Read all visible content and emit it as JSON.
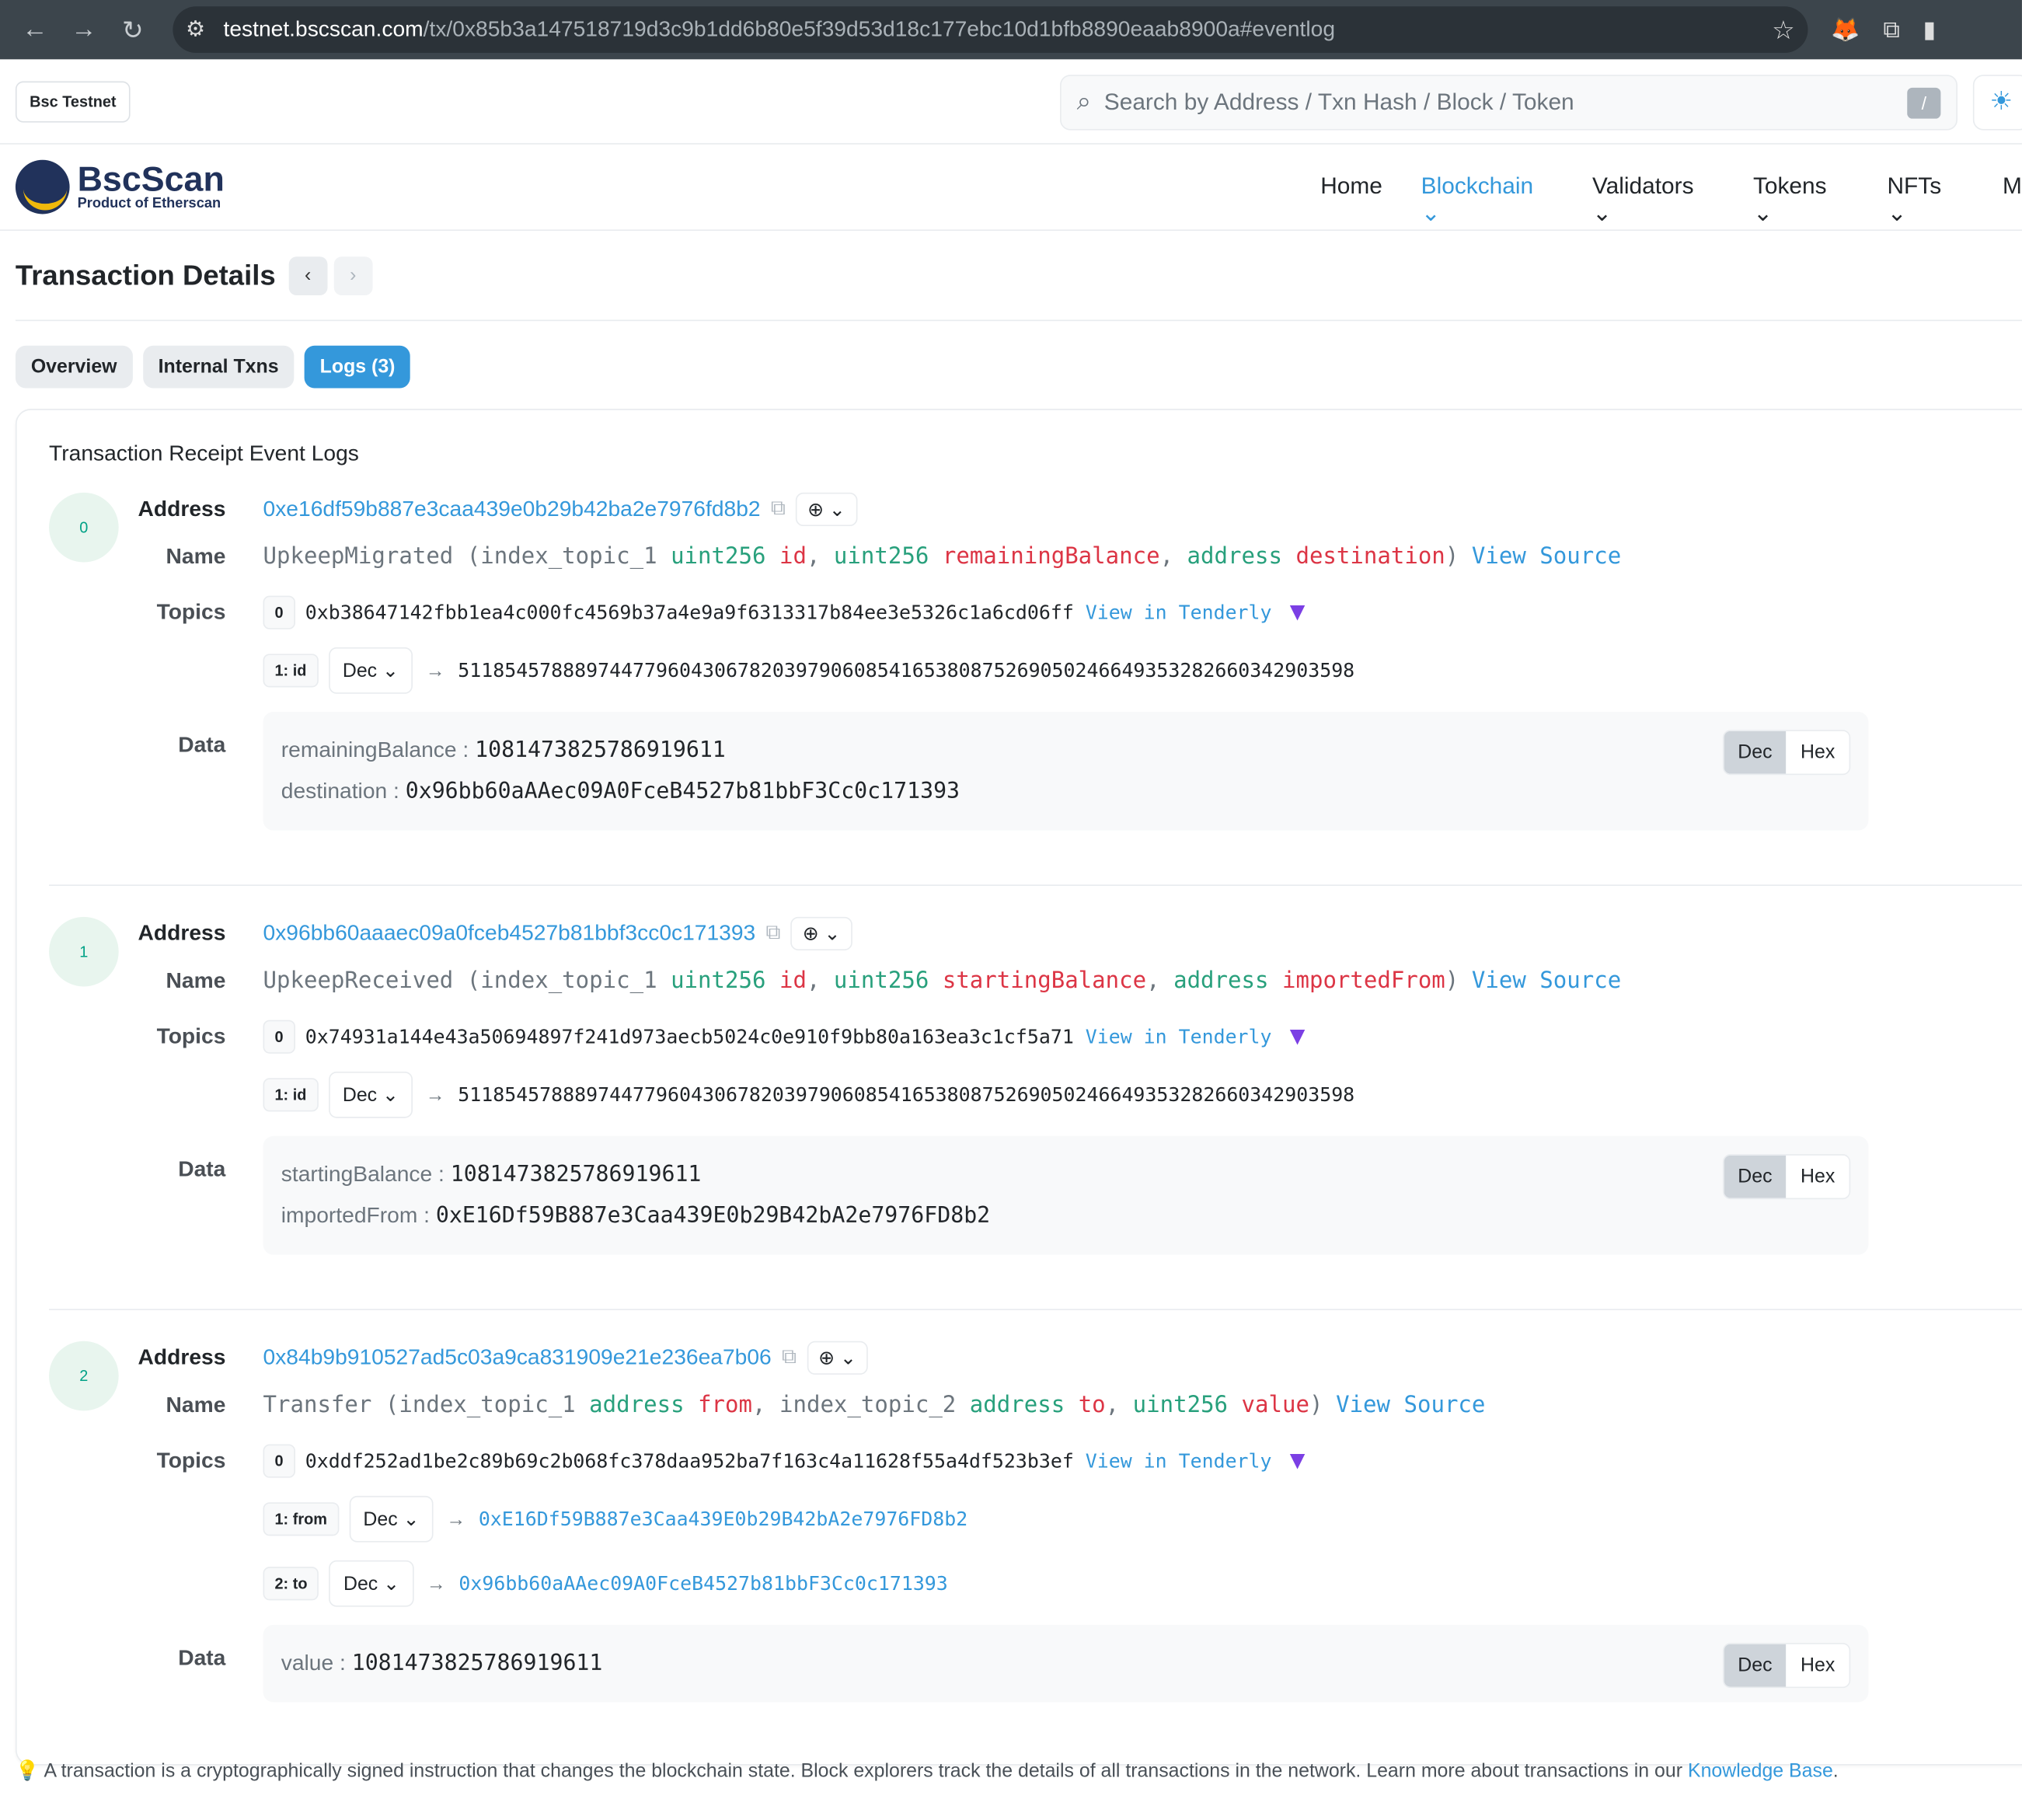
{
  "browser": {
    "host": "testnet.bscscan.com",
    "path": "/tx/0x85b3a147518719d3c9b1dd6b80e5f39d53d18c177ebc10d1bfb8890eaab8900a#eventlog"
  },
  "topbar": {
    "network": "Bsc Testnet",
    "search_placeholder": "Search by Address / Txn Hash / Block / Token",
    "slash": "/"
  },
  "logo": {
    "name": "BscScan",
    "tagline": "Product of Etherscan"
  },
  "nav": [
    {
      "label": "Home"
    },
    {
      "label": "Blockchain"
    },
    {
      "label": "Validators"
    },
    {
      "label": "Tokens"
    },
    {
      "label": "NFTs"
    },
    {
      "label": "M"
    }
  ],
  "page": {
    "title": "Transaction Details"
  },
  "tabs": [
    {
      "label": "Overview"
    },
    {
      "label": "Internal Txns"
    },
    {
      "label": "Logs (3)"
    }
  ],
  "card": {
    "title": "Transaction Receipt Event Logs"
  },
  "labels": {
    "address": "Address",
    "name": "Name",
    "topics": "Topics",
    "data": "Data",
    "view_source": "View Source",
    "view_tenderly": "View in Tenderly",
    "dec": "Dec",
    "hex": "Hex"
  },
  "logs": [
    {
      "index": "0",
      "address": "0xe16df59b887e3caa439e0b29b42ba2e7976fd8b2",
      "event": "UpkeepMigrated",
      "params": [
        [
          "index_topic_1 ",
          "uint256",
          "id"
        ],
        [
          "",
          "uint256",
          "remainingBalance"
        ],
        [
          "",
          "address",
          "destination"
        ]
      ],
      "topic0": "0xb38647142fbb1ea4c000fc4569b37a4e9a9f6313317b84ee3e5326c1a6cd06ff",
      "topics": [
        {
          "badge": "1: id",
          "format": "Dec",
          "value": "51185457888974477960430678203979060854165380875269050246649353282660342903598",
          "link": false
        }
      ],
      "data": [
        {
          "key": "remainingBalance",
          "value": "1081473825786919611",
          "link": false
        },
        {
          "key": "destination",
          "value": "0x96bb60aAAec09A0FceB4527b81bbF3Cc0c171393",
          "link": true
        }
      ]
    },
    {
      "index": "1",
      "address": "0x96bb60aaaec09a0fceb4527b81bbf3cc0c171393",
      "event": "UpkeepReceived",
      "params": [
        [
          "index_topic_1 ",
          "uint256",
          "id"
        ],
        [
          "",
          "uint256",
          "startingBalance"
        ],
        [
          "",
          "address",
          "importedFrom"
        ]
      ],
      "topic0": "0x74931a144e43a50694897f241d973aecb5024c0e910f9bb80a163ea3c1cf5a71",
      "topics": [
        {
          "badge": "1: id",
          "format": "Dec",
          "value": "51185457888974477960430678203979060854165380875269050246649353282660342903598",
          "link": false
        }
      ],
      "data": [
        {
          "key": "startingBalance",
          "value": "1081473825786919611",
          "link": false
        },
        {
          "key": "importedFrom",
          "value": "0xE16Df59B887e3Caa439E0b29B42bA2e7976FD8b2",
          "link": true
        }
      ]
    },
    {
      "index": "2",
      "address": "0x84b9b910527ad5c03a9ca831909e21e236ea7b06",
      "event": "Transfer",
      "params": [
        [
          "index_topic_1 ",
          "address",
          "from"
        ],
        [
          "index_topic_2 ",
          "address",
          "to"
        ],
        [
          "",
          "uint256",
          "value"
        ]
      ],
      "topic0": "0xddf252ad1be2c89b69c2b068fc378daa952ba7f163c4a11628f55a4df523b3ef",
      "topics": [
        {
          "badge": "1: from",
          "format": "Dec",
          "value": "0xE16Df59B887e3Caa439E0b29B42bA2e7976FD8b2",
          "link": true
        },
        {
          "badge": "2: to",
          "format": "Dec",
          "value": "0x96bb60aAAec09A0FceB4527b81bbF3Cc0c171393",
          "link": true
        }
      ],
      "data": [
        {
          "key": "value",
          "value": "1081473825786919611",
          "link": false
        }
      ]
    }
  ],
  "footer": {
    "text": "A transaction is a cryptographically signed instruction that changes the blockchain state. Block explorers track the details of all transactions in the network. Learn more about transactions in our ",
    "link": "Knowledge Base",
    "end": "."
  }
}
